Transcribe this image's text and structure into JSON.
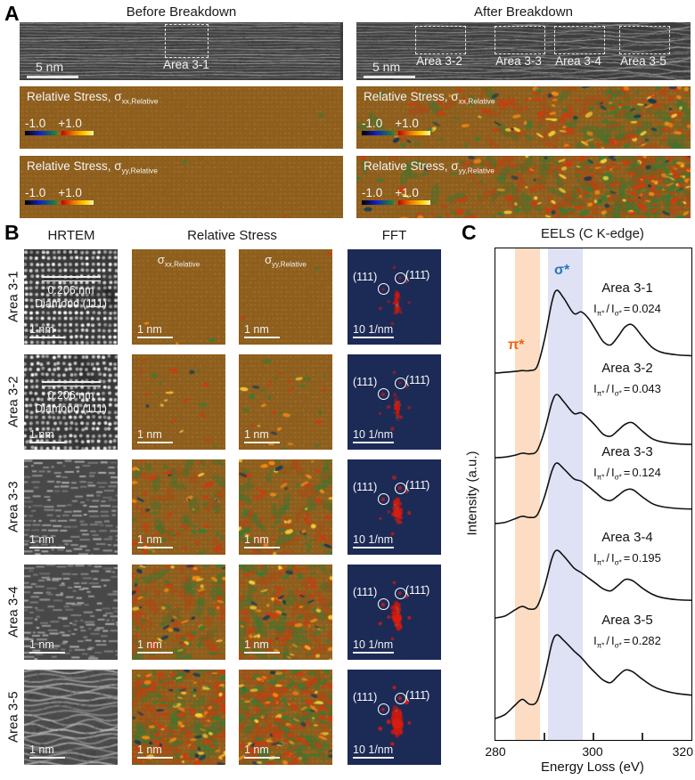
{
  "figure": {
    "panel_a": "A",
    "panel_b": "B",
    "panel_c": "C"
  },
  "panelA": {
    "before": {
      "title": "Before Breakdown",
      "scale_bar": "5 nm",
      "area_labels": [
        "Area 3-1"
      ]
    },
    "after": {
      "title": "After Breakdown",
      "scale_bar": "5 nm",
      "area_labels": [
        "Area 3-2",
        "Area 3-3",
        "Area 3-4",
        "Area 3-5"
      ]
    },
    "stress": {
      "prefix": "Relative Stress, σ",
      "xx_sub": "xx,Relative",
      "yy_sub": "yy,Relative",
      "cbar_min": "-1.0",
      "cbar_max": "+1.0"
    }
  },
  "panelB": {
    "headers": {
      "hrtem": "HRTEM",
      "stress": "Relative Stress",
      "fft": "FFT"
    },
    "sigma": "σ",
    "xx_sub": "xx,Relative",
    "yy_sub": "yy,Relative",
    "scale_bar": "1 nm",
    "fft_scale_bar": "10 1/nm",
    "fft_label_left": "(111)",
    "fft_label_right": "(111̄)",
    "annotation_line1": "0.206 nm",
    "annotation_line2": "Diamond (111)",
    "rows": [
      {
        "area": "Area 3-1"
      },
      {
        "area": "Area 3-2"
      },
      {
        "area": "Area 3-3"
      },
      {
        "area": "Area 3-4"
      },
      {
        "area": "Area 3-5"
      }
    ]
  },
  "panelC": {
    "title": "EELS (C K-edge)",
    "ylabel": "Intensity (a.u.)",
    "xlabel": "Energy Loss (eV)",
    "pi_band_label": "π*",
    "sigma_band_label": "σ*",
    "pi_color": "#e8650f",
    "sigma_color": "#2878b8",
    "ratio": {
      "i": "I",
      "pi": "π*",
      "sigma": "σ*",
      "slash": "/",
      "eq": "="
    },
    "x_tick_labels": [
      "280",
      "300",
      "320"
    ],
    "spectra": [
      {
        "area": "Area 3-1",
        "ratio_value": "0.024"
      },
      {
        "area": "Area 3-2",
        "ratio_value": "0.043"
      },
      {
        "area": "Area 3-3",
        "ratio_value": "0.124"
      },
      {
        "area": "Area 3-4",
        "ratio_value": "0.195"
      },
      {
        "area": "Area 3-5",
        "ratio_value": "0.282"
      }
    ]
  },
  "chart_data": {
    "type": "line",
    "title": "EELS (C K-edge)",
    "xlabel": "Energy Loss (eV)",
    "ylabel": "Intensity (a.u.)",
    "xlim": [
      280,
      320
    ],
    "x_ticks": [
      290,
      300,
      310
    ],
    "x_tick_labels_at": [
      280,
      300,
      320
    ],
    "legend": "none",
    "bands": [
      {
        "label": "π*",
        "x_range": [
          284,
          289
        ],
        "color": "rgba(246,166,96,0.38)"
      },
      {
        "label": "σ*",
        "x_range": [
          290.8,
          297.8
        ],
        "color": "rgba(156,166,222,0.32)"
      }
    ],
    "x": [
      280,
      282,
      284,
      285.5,
      287,
      288.5,
      290,
      291.5,
      292.5,
      294,
      296,
      297.5,
      299,
      300.5,
      302,
      303.5,
      305,
      306.5,
      308,
      310,
      312,
      314,
      317,
      320
    ],
    "series": [
      {
        "name": "Area 3-1",
        "i_pi_over_i_sigma": 0.024,
        "y": [
          0,
          0.01,
          0.02,
          0.03,
          0.03,
          0.08,
          0.4,
          0.85,
          1.0,
          0.9,
          0.72,
          0.74,
          0.66,
          0.52,
          0.38,
          0.34,
          0.44,
          0.56,
          0.58,
          0.44,
          0.31,
          0.25,
          0.22,
          0.21
        ]
      },
      {
        "name": "Area 3-2",
        "i_pi_over_i_sigma": 0.043,
        "y": [
          0,
          0.01,
          0.04,
          0.07,
          0.06,
          0.11,
          0.42,
          0.86,
          1.0,
          0.88,
          0.7,
          0.71,
          0.62,
          0.5,
          0.37,
          0.34,
          0.43,
          0.53,
          0.55,
          0.42,
          0.3,
          0.25,
          0.22,
          0.21
        ]
      },
      {
        "name": "Area 3-3",
        "i_pi_over_i_sigma": 0.124,
        "y": [
          0,
          0.02,
          0.08,
          0.12,
          0.1,
          0.14,
          0.44,
          0.86,
          1.0,
          0.9,
          0.74,
          0.7,
          0.61,
          0.51,
          0.41,
          0.38,
          0.46,
          0.55,
          0.56,
          0.44,
          0.33,
          0.28,
          0.25,
          0.24
        ]
      },
      {
        "name": "Area 3-4",
        "i_pi_over_i_sigma": 0.195,
        "y": [
          0,
          0.03,
          0.12,
          0.17,
          0.13,
          0.17,
          0.46,
          0.87,
          1.0,
          0.91,
          0.74,
          0.67,
          0.59,
          0.51,
          0.43,
          0.4,
          0.48,
          0.57,
          0.55,
          0.44,
          0.35,
          0.3,
          0.27,
          0.26
        ]
      },
      {
        "name": "Area 3-5",
        "i_pi_over_i_sigma": 0.282,
        "y": [
          0,
          0.05,
          0.16,
          0.23,
          0.17,
          0.21,
          0.5,
          0.89,
          1.0,
          0.93,
          0.81,
          0.73,
          0.63,
          0.54,
          0.46,
          0.43,
          0.51,
          0.58,
          0.56,
          0.47,
          0.39,
          0.34,
          0.3,
          0.28
        ]
      }
    ]
  }
}
